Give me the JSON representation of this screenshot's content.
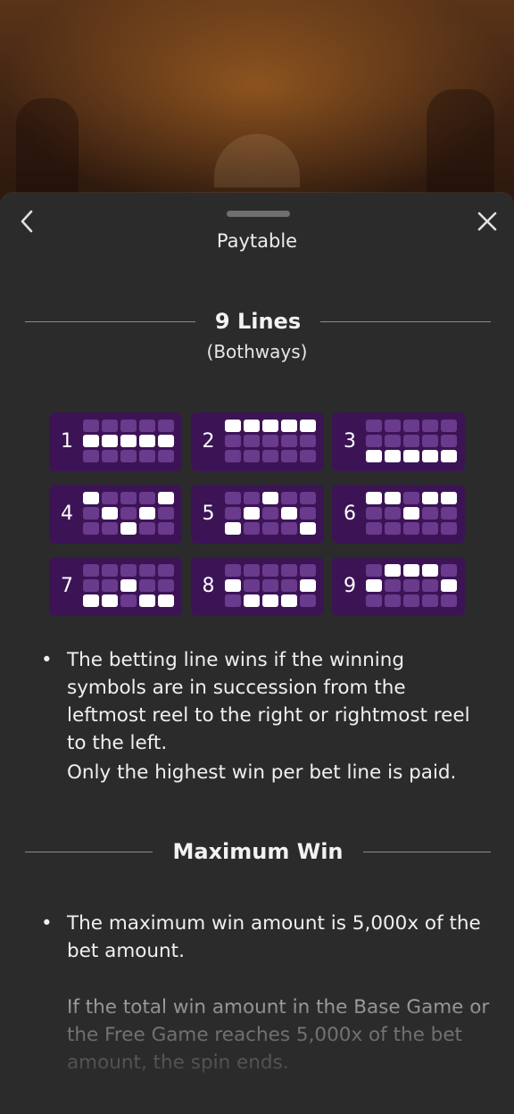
{
  "header": {
    "title": "Paytable"
  },
  "lines_section": {
    "title": "9 Lines",
    "subtitle": "(Bothways)"
  },
  "paylines": [
    {
      "number": "1",
      "rows": [
        1,
        1,
        1,
        1,
        1
      ]
    },
    {
      "number": "2",
      "rows": [
        0,
        0,
        0,
        0,
        0
      ]
    },
    {
      "number": "3",
      "rows": [
        2,
        2,
        2,
        2,
        2
      ]
    },
    {
      "number": "4",
      "rows": [
        0,
        1,
        2,
        1,
        0
      ]
    },
    {
      "number": "5",
      "rows": [
        2,
        1,
        0,
        1,
        2
      ]
    },
    {
      "number": "6",
      "rows": [
        0,
        0,
        1,
        0,
        0
      ]
    },
    {
      "number": "7",
      "rows": [
        2,
        2,
        1,
        2,
        2
      ]
    },
    {
      "number": "8",
      "rows": [
        1,
        2,
        2,
        2,
        1
      ]
    },
    {
      "number": "9",
      "rows": [
        1,
        0,
        0,
        0,
        1
      ]
    }
  ],
  "lines_rules": {
    "bullet_symbol": "•",
    "rule1": "The betting line wins if the winning symbols are in succession from the leftmost reel to the right or rightmost reel to the left.",
    "rule2": "Only the highest win per bet line is paid."
  },
  "max_win_section": {
    "title": "Maximum Win",
    "rule1": "The maximum win amount is 5,000x of the bet amount.",
    "rule2": "If the total win amount in the Base Game or the Free Game reaches 5,000x of the bet amount, the spin ends."
  },
  "colors": {
    "card_bg": "#3c1456",
    "cell_off": "#6a3a8c",
    "cell_on": "#ffffff",
    "sheet_bg": "#2b2b2b"
  },
  "icons": {
    "back": "chevron-left-icon",
    "close": "close-icon"
  }
}
